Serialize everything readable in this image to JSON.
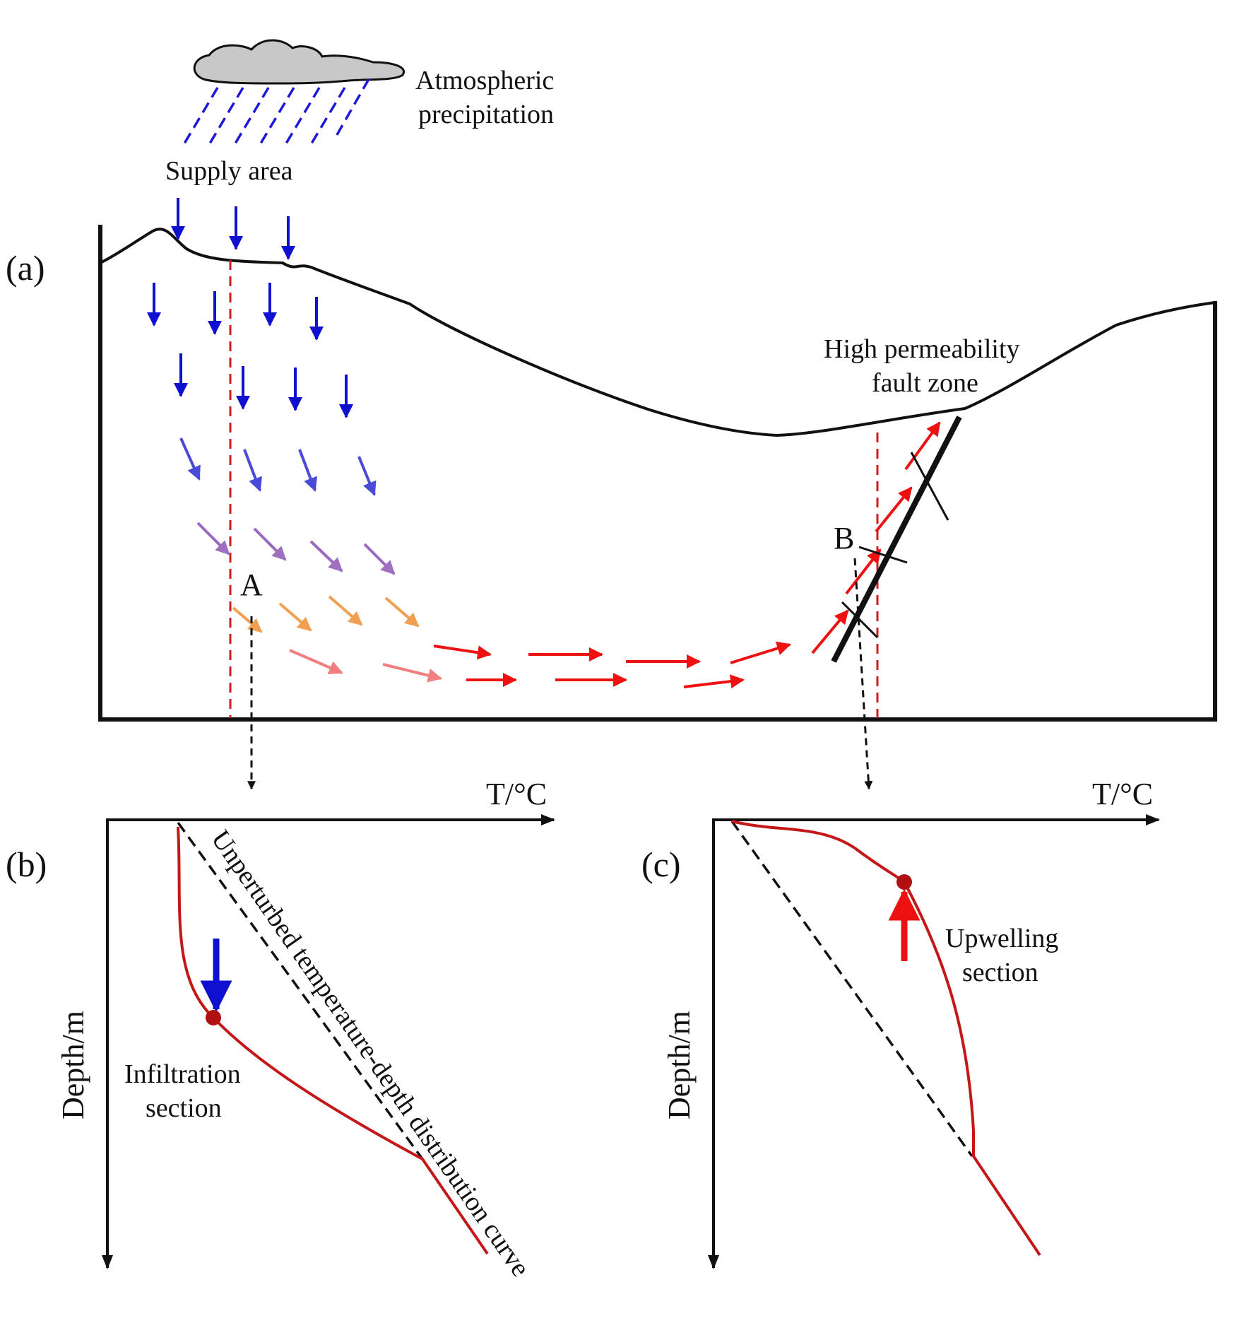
{
  "panels": {
    "a": "(a)",
    "b": "(b)",
    "c": "(c)"
  },
  "labels": {
    "atmospheric_line1": "Atmospheric",
    "atmospheric_line2": "precipitation",
    "supply_area": "Supply area",
    "fault_line1": "High permeability",
    "fault_line2": "fault zone",
    "point_a": "A",
    "point_b": "B",
    "unperturbed_curve": "Unperturbed temperature-depth distribution curve",
    "infiltration_line1": "Infiltration",
    "infiltration_line2": "section",
    "upwelling_line1": "Upwelling",
    "upwelling_line2": "section"
  },
  "axes": {
    "b": {
      "x_label": "T/°C",
      "y_label": "Depth/m"
    },
    "c": {
      "x_label": "T/°C",
      "y_label": "Depth/m"
    }
  },
  "colors": {
    "recharge_arrow": "#1010d0",
    "discharge_arrow": "#ee1111",
    "profile_curve": "#c41818",
    "marker_point": "#b01010",
    "cloud_fill": "#c8c8c8"
  }
}
